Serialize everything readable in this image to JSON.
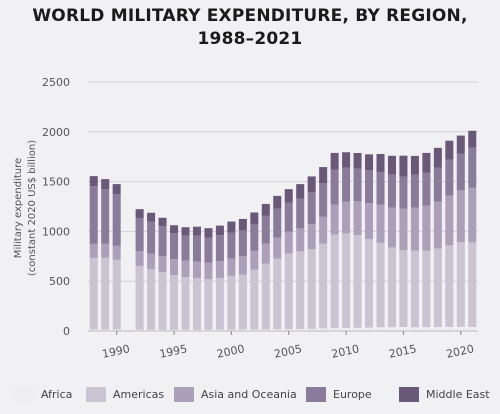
{
  "chart_data": {
    "type": "bar",
    "stacked": true,
    "title_line1": "WORLD MILITARY EXPENDITURE, BY REGION,",
    "title_line2": "1988–2021",
    "ylabel_line1": "Military expenditure",
    "ylabel_line2": "(constant 2020 US$ billion)",
    "xlabel": "",
    "ylim": [
      0,
      2500
    ],
    "yticks": [
      0,
      500,
      1000,
      1500,
      2000,
      2500
    ],
    "xticks": [
      1990,
      1995,
      2000,
      2005,
      2010,
      2015,
      2020
    ],
    "grid": "horizontal",
    "legend_position": "bottom",
    "categories": [
      1988,
      1989,
      1990,
      1991,
      1992,
      1993,
      1994,
      1995,
      1996,
      1997,
      1998,
      1999,
      2000,
      2001,
      2002,
      2003,
      2004,
      2005,
      2006,
      2007,
      2008,
      2009,
      2010,
      2011,
      2012,
      2013,
      2014,
      2015,
      2016,
      2017,
      2018,
      2019,
      2020,
      2021
    ],
    "series": [
      {
        "name": "Africa",
        "color": "#eeedf1",
        "values": [
          15,
          15,
          15,
          null,
          13,
          12,
          12,
          12,
          12,
          12,
          12,
          13,
          14,
          15,
          15,
          16,
          17,
          19,
          20,
          22,
          26,
          28,
          30,
          32,
          34,
          37,
          39,
          40,
          38,
          38,
          39,
          41,
          42,
          40
        ]
      },
      {
        "name": "Americas",
        "color": "#c9c3d2",
        "values": [
          720,
          720,
          700,
          null,
          640,
          610,
          580,
          550,
          530,
          520,
          510,
          520,
          540,
          550,
          600,
          660,
          710,
          760,
          780,
          800,
          850,
          940,
          950,
          930,
          890,
          850,
          800,
          770,
          770,
          770,
          790,
          820,
          850,
          850
        ]
      },
      {
        "name": "Asia and Oceania",
        "color": "#ac9fba",
        "values": [
          140,
          140,
          140,
          null,
          150,
          155,
          160,
          160,
          165,
          165,
          165,
          170,
          175,
          185,
          190,
          200,
          210,
          220,
          230,
          250,
          270,
          300,
          320,
          340,
          360,
          380,
          400,
          420,
          430,
          450,
          470,
          500,
          520,
          550
        ]
      },
      {
        "name": "Europe",
        "color": "#8a7b9b",
        "values": [
          580,
          550,
          520,
          null,
          330,
          320,
          300,
          260,
          250,
          260,
          250,
          260,
          260,
          260,
          270,
          280,
          290,
          290,
          300,
          320,
          340,
          350,
          340,
          330,
          330,
          330,
          330,
          320,
          330,
          330,
          340,
          360,
          370,
          400
        ]
      },
      {
        "name": "Middle East",
        "color": "#6a5879",
        "values": [
          100,
          100,
          100,
          null,
          90,
          90,
          85,
          80,
          85,
          90,
          95,
          95,
          110,
          115,
          115,
          120,
          130,
          135,
          145,
          160,
          160,
          170,
          155,
          155,
          160,
          180,
          190,
          210,
          190,
          200,
          200,
          190,
          180,
          170
        ]
      }
    ]
  }
}
